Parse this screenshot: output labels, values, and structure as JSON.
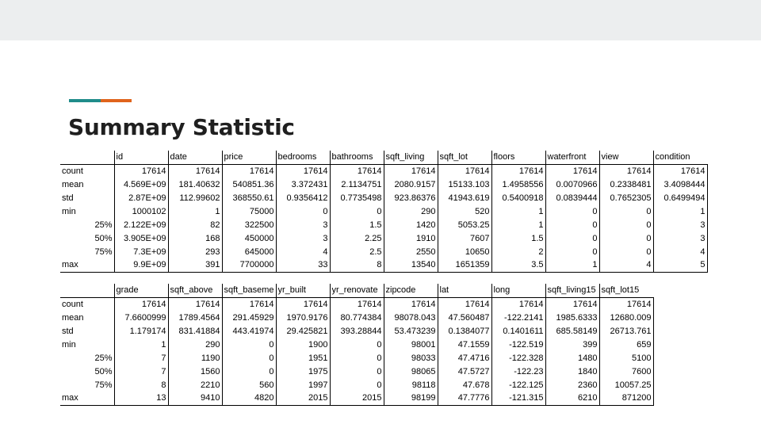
{
  "slide": {
    "title": "Summary Statistic",
    "accent_colors": [
      "#1f8c8a",
      "#e0641c"
    ],
    "topbar_color": "#eceeef"
  },
  "table1": {
    "columns": [
      "id",
      "date",
      "price",
      "bedrooms",
      "bathrooms",
      "sqft_living",
      "sqft_lot",
      "floors",
      "waterfront",
      "view",
      "condition"
    ],
    "rows": [
      {
        "label": "count",
        "values": [
          "17614",
          "17614",
          "17614",
          "17614",
          "17614",
          "17614",
          "17614",
          "17614",
          "17614",
          "17614",
          "17614"
        ]
      },
      {
        "label": "mean",
        "values": [
          "4.569E+09",
          "181.40632",
          "540851.36",
          "3.372431",
          "2.1134751",
          "2080.9157",
          "15133.103",
          "1.4958556",
          "0.0070966",
          "0.2338481",
          "3.4098444"
        ]
      },
      {
        "label": "std",
        "values": [
          "2.87E+09",
          "112.99602",
          "368550.61",
          "0.9356412",
          "0.7735498",
          "923.86376",
          "41943.619",
          "0.5400918",
          "0.0839444",
          "0.7652305",
          "0.6499494"
        ]
      },
      {
        "label": "min",
        "values": [
          "1000102",
          "1",
          "75000",
          "0",
          "0",
          "290",
          "520",
          "1",
          "0",
          "0",
          "1"
        ]
      },
      {
        "label": "25%",
        "values": [
          "2.122E+09",
          "82",
          "322500",
          "3",
          "1.5",
          "1420",
          "5053.25",
          "1",
          "0",
          "0",
          "3"
        ]
      },
      {
        "label": "50%",
        "values": [
          "3.905E+09",
          "168",
          "450000",
          "3",
          "2.25",
          "1910",
          "7607",
          "1.5",
          "0",
          "0",
          "3"
        ]
      },
      {
        "label": "75%",
        "values": [
          "7.3E+09",
          "293",
          "645000",
          "4",
          "2.5",
          "2550",
          "10650",
          "2",
          "0",
          "0",
          "4"
        ]
      },
      {
        "label": "max",
        "values": [
          "9.9E+09",
          "391",
          "7700000",
          "33",
          "8",
          "13540",
          "1651359",
          "3.5",
          "1",
          "4",
          "5"
        ]
      }
    ]
  },
  "table2": {
    "columns": [
      "grade",
      "sqft_above",
      "sqft_baseme",
      "yr_built",
      "yr_renovate",
      "zipcode",
      "lat",
      "long",
      "sqft_living15",
      "sqft_lot15"
    ],
    "rows": [
      {
        "label": "count",
        "values": [
          "17614",
          "17614",
          "17614",
          "17614",
          "17614",
          "17614",
          "17614",
          "17614",
          "17614",
          "17614"
        ]
      },
      {
        "label": "mean",
        "values": [
          "7.6600999",
          "1789.4564",
          "291.45929",
          "1970.9176",
          "80.774384",
          "98078.043",
          "47.560487",
          "-122.2141",
          "1985.6333",
          "12680.009"
        ]
      },
      {
        "label": "std",
        "values": [
          "1.179174",
          "831.41884",
          "443.41974",
          "29.425821",
          "393.28844",
          "53.473239",
          "0.1384077",
          "0.1401611",
          "685.58149",
          "26713.761"
        ]
      },
      {
        "label": "min",
        "values": [
          "1",
          "290",
          "0",
          "1900",
          "0",
          "98001",
          "47.1559",
          "-122.519",
          "399",
          "659"
        ]
      },
      {
        "label": "25%",
        "values": [
          "7",
          "1190",
          "0",
          "1951",
          "0",
          "98033",
          "47.4716",
          "-122.328",
          "1480",
          "5100"
        ]
      },
      {
        "label": "50%",
        "values": [
          "7",
          "1560",
          "0",
          "1975",
          "0",
          "98065",
          "47.5727",
          "-122.23",
          "1840",
          "7600"
        ]
      },
      {
        "label": "75%",
        "values": [
          "8",
          "2210",
          "560",
          "1997",
          "0",
          "98118",
          "47.678",
          "-122.125",
          "2360",
          "10057.25"
        ]
      },
      {
        "label": "max",
        "values": [
          "13",
          "9410",
          "4820",
          "2015",
          "2015",
          "98199",
          "47.7776",
          "-121.315",
          "6210",
          "871200"
        ]
      }
    ]
  }
}
